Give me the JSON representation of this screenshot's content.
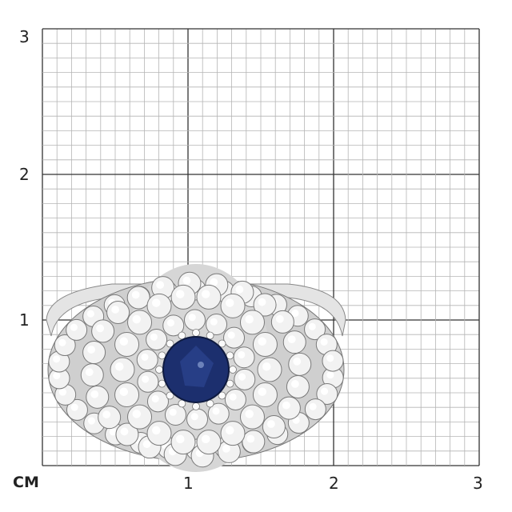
{
  "scale": {
    "unit_label": "CM",
    "x_ticks": [
      "1",
      "2",
      "3"
    ],
    "y_ticks": [
      "1",
      "2",
      "3"
    ],
    "major_step_cm": 1,
    "minor_divisions": 10,
    "range_cm": [
      0,
      3
    ]
  },
  "product": {
    "type": "ring",
    "center_stone_color": "#1c2f6e",
    "metal_color": "#d8d8d8"
  },
  "colors": {
    "minor_grid": "#b5b5b5",
    "major_grid": "#333333"
  }
}
